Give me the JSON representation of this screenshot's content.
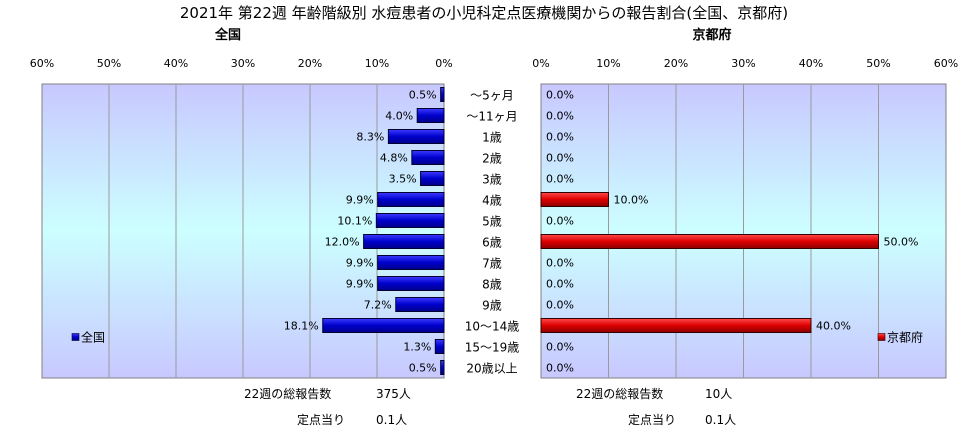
{
  "title": "2021年 第22週 年齢階級別 水痘患者の小児科定点医療機関からの報告割合(全国、京都府)",
  "colors": {
    "national": "#0000cc",
    "kyoto": "#dd0000",
    "plot_grad_top": "#c8c8ff",
    "plot_grad_mid": "#ccffff"
  },
  "chart_data": [
    {
      "type": "bar",
      "orientation": "horizontal",
      "direction": "right-to-left",
      "title": "全国",
      "categories": [
        "〜5ヶ月",
        "〜11ヶ月",
        "1歳",
        "2歳",
        "3歳",
        "4歳",
        "5歳",
        "6歳",
        "7歳",
        "8歳",
        "9歳",
        "10〜14歳",
        "15〜19歳",
        "20歳以上"
      ],
      "series": [
        {
          "name": "全国",
          "values": [
            0.5,
            4.0,
            8.3,
            4.8,
            3.5,
            9.9,
            10.1,
            12.0,
            9.9,
            9.9,
            7.2,
            18.1,
            1.3,
            0.5
          ],
          "labels": [
            "0.5%",
            "4.0%",
            "8.3%",
            "4.8%",
            "3.5%",
            "9.9%",
            "10.1%",
            "12.0%",
            "9.9%",
            "9.9%",
            "7.2%",
            "18.1%",
            "1.3%",
            "0.5%"
          ]
        }
      ],
      "xlim": [
        0,
        60
      ],
      "ticks": [
        "0%",
        "10%",
        "20%",
        "30%",
        "40%",
        "50%",
        "60%"
      ],
      "grid": true,
      "legend": "bottom-left",
      "total_label": "22週の総報告数",
      "total_value": "375人",
      "per_site_label": "定点当り",
      "per_site_value": "0.1人"
    },
    {
      "type": "bar",
      "orientation": "horizontal",
      "direction": "left-to-right",
      "title": "京都府",
      "categories": [
        "〜5ヶ月",
        "〜11ヶ月",
        "1歳",
        "2歳",
        "3歳",
        "4歳",
        "5歳",
        "6歳",
        "7歳",
        "8歳",
        "9歳",
        "10〜14歳",
        "15〜19歳",
        "20歳以上"
      ],
      "series": [
        {
          "name": "京都府",
          "values": [
            0.0,
            0.0,
            0.0,
            0.0,
            0.0,
            10.0,
            0.0,
            50.0,
            0.0,
            0.0,
            0.0,
            40.0,
            0.0,
            0.0
          ],
          "labels": [
            "0.0%",
            "0.0%",
            "0.0%",
            "0.0%",
            "0.0%",
            "10.0%",
            "0.0%",
            "50.0%",
            "0.0%",
            "0.0%",
            "0.0%",
            "40.0%",
            "0.0%",
            "0.0%"
          ]
        }
      ],
      "xlim": [
        0,
        60
      ],
      "ticks": [
        "0%",
        "10%",
        "20%",
        "30%",
        "40%",
        "50%",
        "60%"
      ],
      "grid": true,
      "legend": "bottom-right",
      "total_label": "22週の総報告数",
      "total_value": "10人",
      "per_site_label": "定点当り",
      "per_site_value": "0.1人"
    }
  ]
}
